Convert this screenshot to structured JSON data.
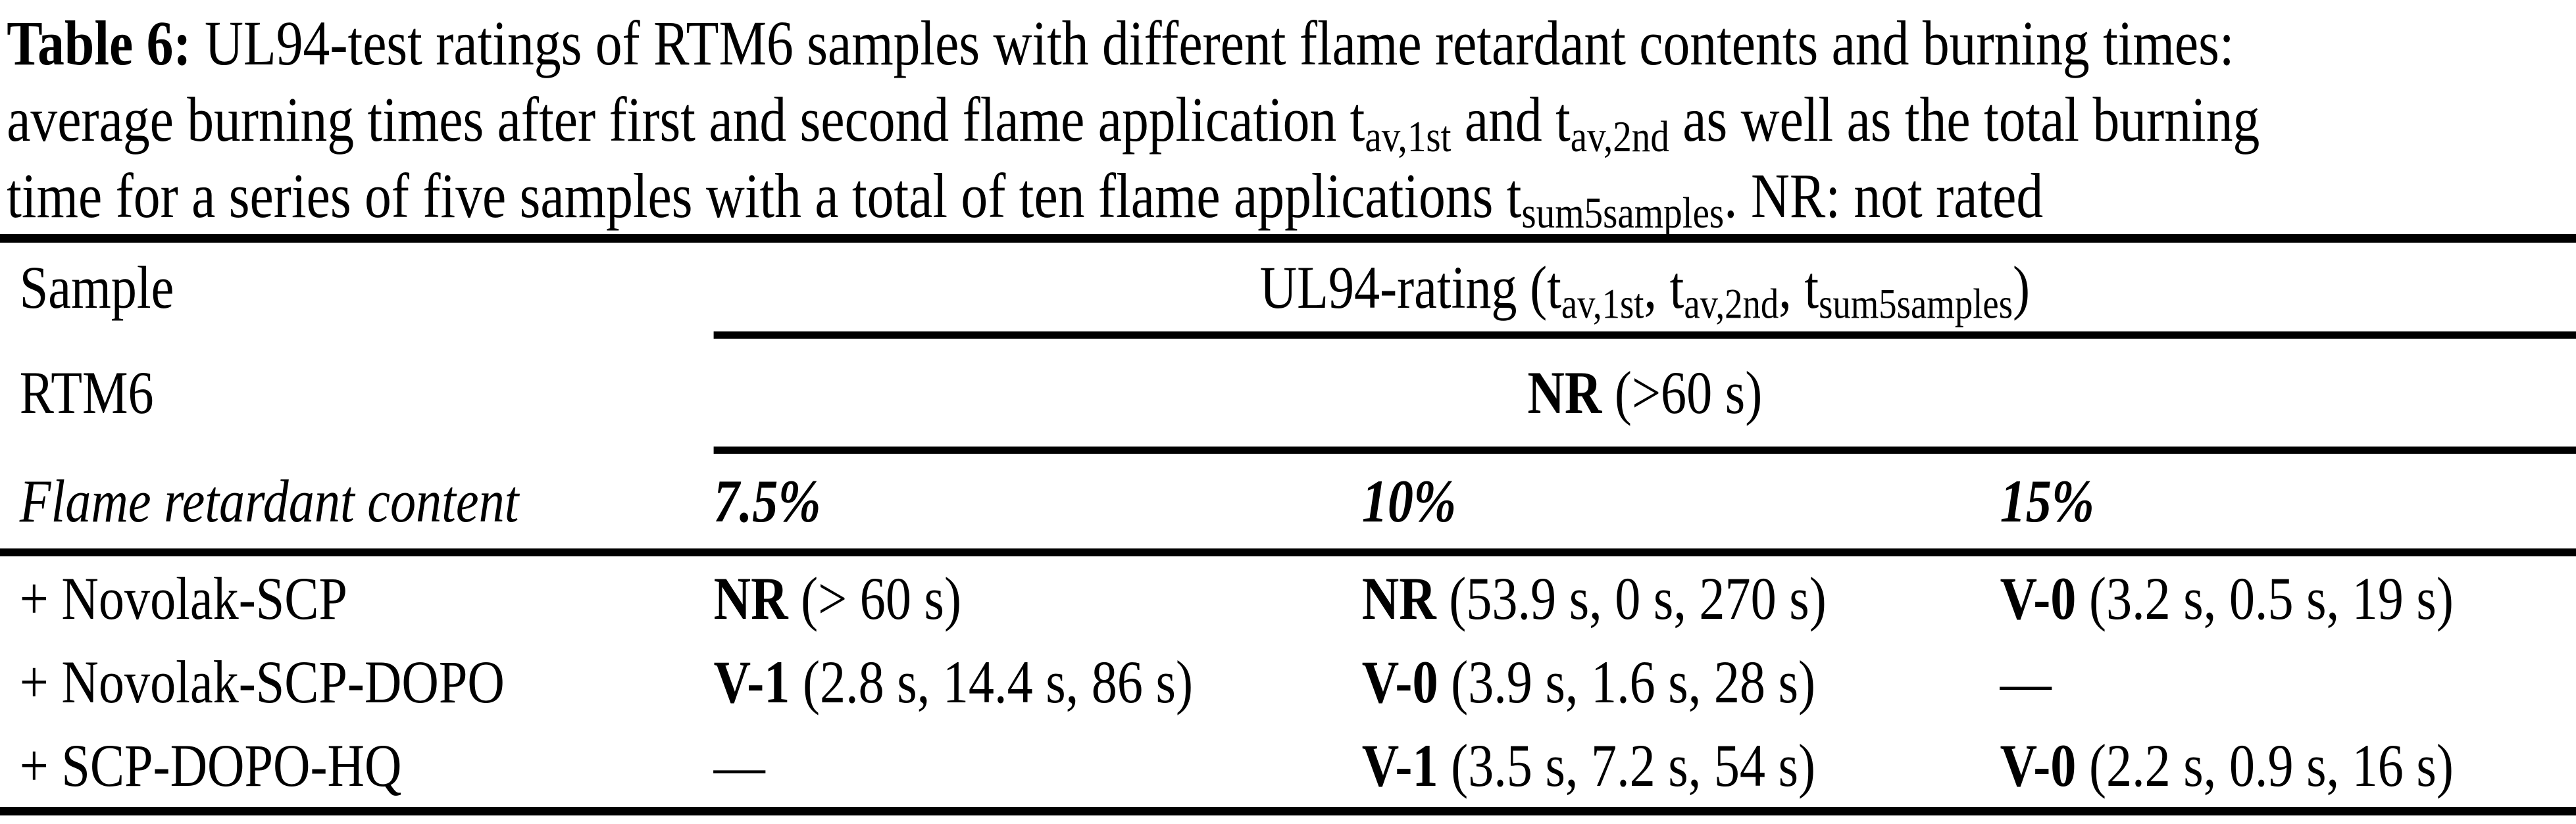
{
  "document": {
    "type": "paper-table-figure",
    "background_color": "#ffffff",
    "text_color": "#000000"
  },
  "caption": {
    "lines": [
      {
        "segments": [
          {
            "t": "Table 6:",
            "style": "bold"
          },
          {
            "t": " UL94-test ratings of RTM6 samples with different flame retardant contents and burning times:"
          }
        ]
      },
      {
        "segments": [
          {
            "t": "average burning times after first and second flame application t"
          },
          {
            "t": "av,1st",
            "style": "sub"
          },
          {
            "t": " and t"
          },
          {
            "t": "av,2nd",
            "style": "sub"
          },
          {
            "t": " as well as the total burning"
          }
        ]
      },
      {
        "segments": [
          {
            "t": "time for a series of five samples with a total of ten flame applications t"
          },
          {
            "t": "sum5samples",
            "style": "sub"
          },
          {
            "t": ". NR: not rated"
          }
        ]
      }
    ]
  },
  "table": {
    "header": {
      "sample_label": "Sample",
      "ul94": {
        "p0": "UL94-rating (t",
        "s0": "av,1st",
        "p1": ", t",
        "s1": "av,2nd",
        "p2": ", t",
        "s2": "sum5samples",
        "p3": ")"
      }
    },
    "rtm6": {
      "label": "RTM6",
      "rating": "NR",
      "detail": " (>60 s)"
    },
    "content_header": {
      "label": "Flame retardant content",
      "columns": [
        "7.5%",
        "10%",
        "15%"
      ]
    },
    "rows": [
      {
        "label": "+ Novolak-SCP",
        "cells": [
          {
            "rating": "NR",
            "detail": " (> 60 s)"
          },
          {
            "rating": "NR",
            "detail": " (53.9 s, 0 s, 270 s)"
          },
          {
            "rating": "V-0",
            "detail": " (3.2 s, 0.5 s, 19 s)"
          }
        ]
      },
      {
        "label": "+ Novolak-SCP-DOPO",
        "cells": [
          {
            "rating": "V-1",
            "detail": " (2.8 s, 14.4 s, 86 s)"
          },
          {
            "rating": "V-0",
            "detail": " (3.9 s, 1.6 s, 28 s)"
          },
          {
            "rating": "",
            "detail": "—"
          }
        ]
      },
      {
        "label": "+ SCP-DOPO-HQ",
        "cells": [
          {
            "rating": "",
            "detail": "—"
          },
          {
            "rating": "V-1",
            "detail": " (3.5 s, 7.2 s, 54 s)"
          },
          {
            "rating": "V-0",
            "detail": " (2.2 s, 0.9 s, 16 s)"
          }
        ]
      }
    ]
  }
}
